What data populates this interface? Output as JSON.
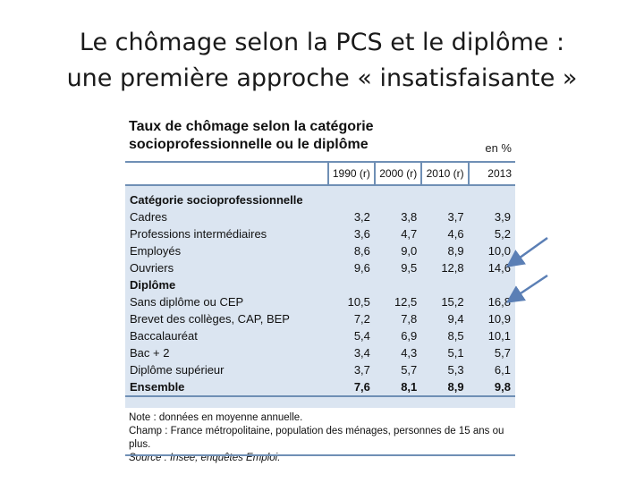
{
  "slide": {
    "title_line1": "Le chômage selon la PCS et le diplôme :",
    "title_line2": "une première approche « insatisfaisante »"
  },
  "figure": {
    "title_line1": "Taux de chômage selon la catégorie",
    "title_line2": "socioprofessionnelle ou le diplôme",
    "unit": "en %",
    "columns": [
      "1990 (r)",
      "2000 (r)",
      "2010 (r)",
      "2013"
    ],
    "sections": [
      {
        "label": "Catégorie socioprofessionnelle",
        "rows": [
          {
            "label": "Cadres",
            "values": [
              "3,2",
              "3,8",
              "3,7",
              "3,9"
            ]
          },
          {
            "label": "Professions intermédiaires",
            "values": [
              "3,6",
              "4,7",
              "4,6",
              "5,2"
            ]
          },
          {
            "label": "Employés",
            "values": [
              "8,6",
              "9,0",
              "8,9",
              "10,0"
            ]
          },
          {
            "label": "Ouvriers",
            "values": [
              "9,6",
              "9,5",
              "12,8",
              "14,6"
            ]
          }
        ]
      },
      {
        "label": "Diplôme",
        "rows": [
          {
            "label": "Sans diplôme ou CEP",
            "values": [
              "10,5",
              "12,5",
              "15,2",
              "16,8"
            ]
          },
          {
            "label": "Brevet des collèges, CAP, BEP",
            "values": [
              "7,2",
              "7,8",
              "9,4",
              "10,9"
            ]
          },
          {
            "label": "Baccalauréat",
            "values": [
              "5,4",
              "6,9",
              "8,5",
              "10,1"
            ]
          },
          {
            "label": "Bac + 2",
            "values": [
              "3,4",
              "4,3",
              "5,1",
              "5,7"
            ]
          },
          {
            "label": "Diplôme supérieur",
            "values": [
              "3,7",
              "5,7",
              "5,3",
              "6,1"
            ]
          }
        ]
      }
    ],
    "total": {
      "label": "Ensemble",
      "values": [
        "7,6",
        "8,1",
        "8,9",
        "9,8"
      ]
    },
    "note": "Note : données en moyenne annuelle.",
    "champ": "Champ : France métropolitaine, population des ménages, personnes de 15 ans ou plus.",
    "source": "Source : Insee, enquêtes Emploi."
  },
  "colors": {
    "accent": "#6f8fb5",
    "table_bg": "#dbe5f1",
    "arrow": "#5b7fb5"
  }
}
